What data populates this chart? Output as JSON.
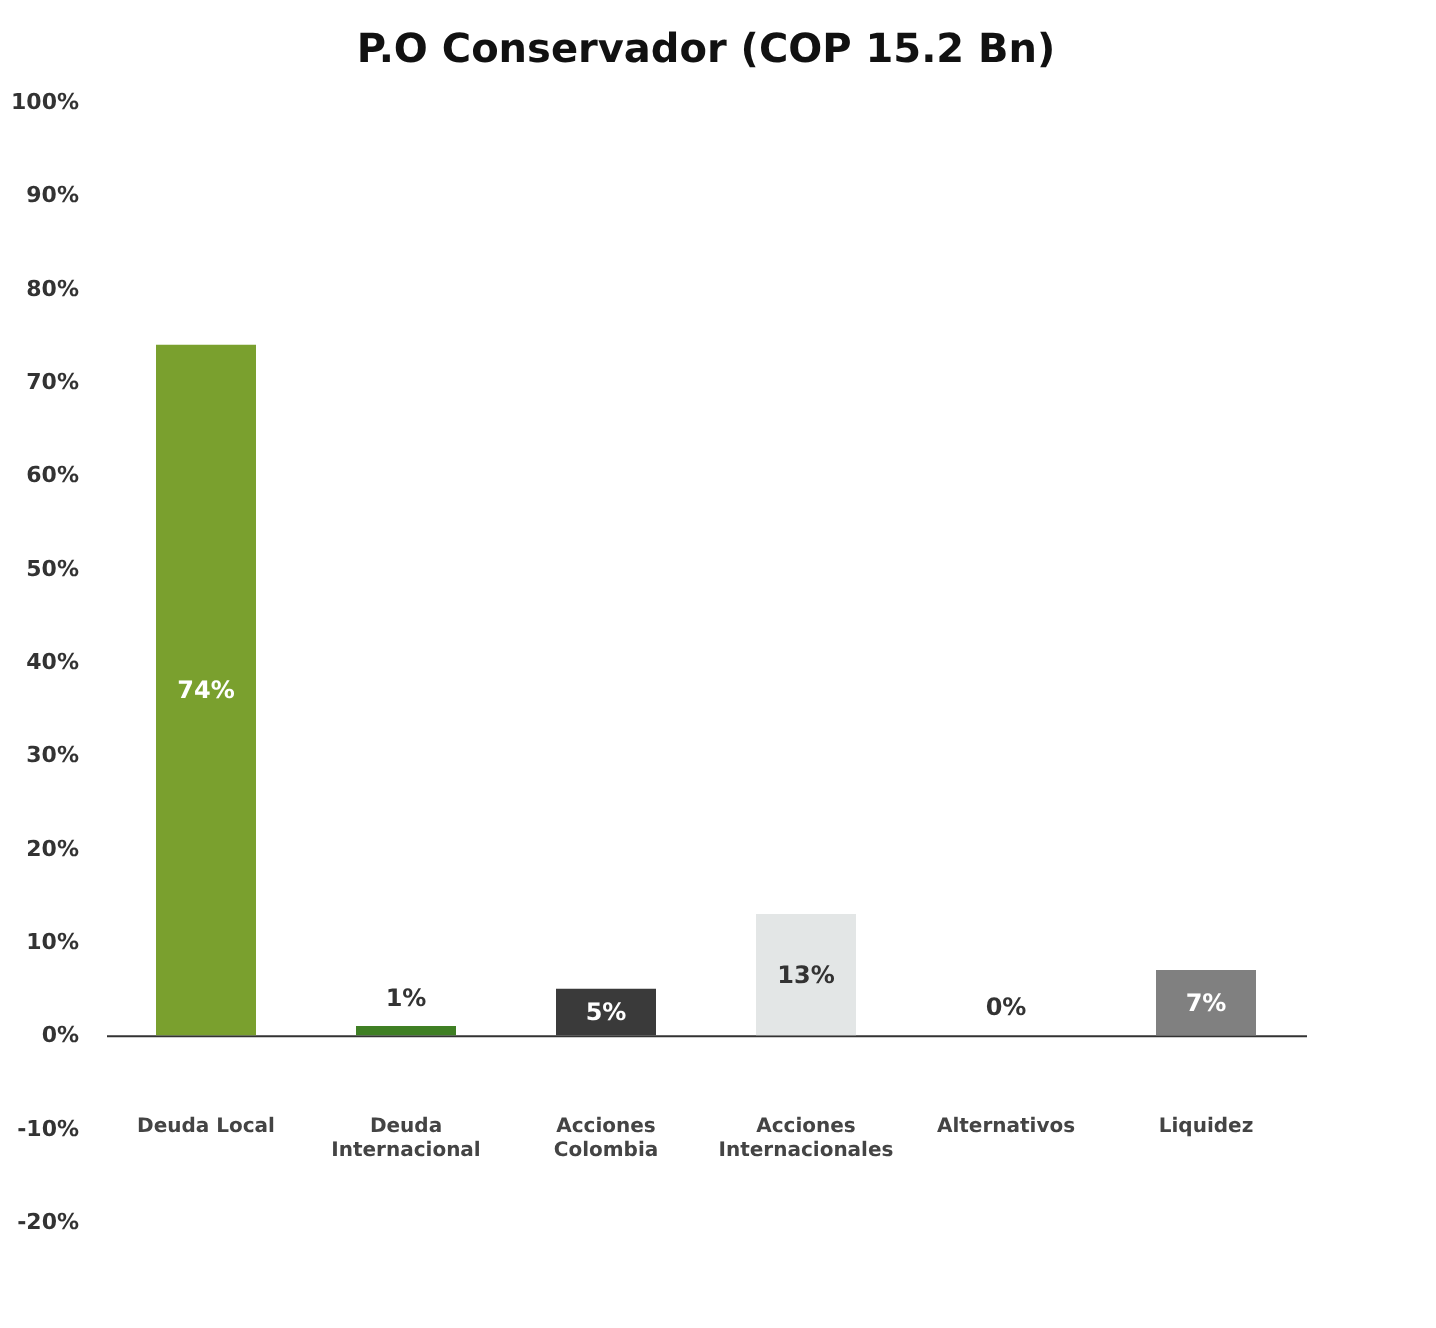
{
  "chart_data": {
    "type": "bar",
    "title": "P.O Conservador (COP 15.2 Bn)",
    "categories": [
      "Deuda Local",
      "Deuda Internacional",
      "Acciones Colombia",
      "Acciones Internacionales",
      "Alternativos",
      "Liquidez"
    ],
    "values": [
      74,
      1,
      5,
      13,
      0,
      7
    ],
    "colors": [
      "#7aa02e",
      "#3f7f24",
      "#3a3a3a",
      "#e3e6e6",
      "#bfbfbf",
      "#808080"
    ],
    "ylim": [
      -20,
      100
    ],
    "yticks": [
      {
        "value": -20,
        "label": "-20%"
      },
      {
        "value": -10,
        "label": "-10%"
      },
      {
        "value": 0,
        "label": "0%"
      },
      {
        "value": 10,
        "label": "10%"
      },
      {
        "value": 20,
        "label": "20%"
      },
      {
        "value": 30,
        "label": "30%"
      },
      {
        "value": 40,
        "label": "40%"
      },
      {
        "value": 50,
        "label": "50%"
      },
      {
        "value": 60,
        "label": "60%"
      },
      {
        "value": 70,
        "label": "70%"
      },
      {
        "value": 80,
        "label": "80%"
      },
      {
        "value": 90,
        "label": "90%"
      },
      {
        "value": 100,
        "label": "100%"
      }
    ],
    "value_labels": [
      "74%",
      "1%",
      "5%",
      "13%",
      "0%",
      "7%"
    ]
  }
}
